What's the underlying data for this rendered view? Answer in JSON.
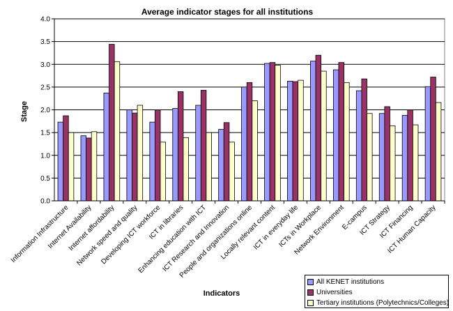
{
  "chart_data": {
    "type": "bar",
    "title": "Average indicator stages for all institutions",
    "xlabel": "Indicators",
    "ylabel": "Stage",
    "ylim": [
      0,
      4
    ],
    "yticks": [
      "0.0",
      "0.5",
      "1.0",
      "1.5",
      "2.0",
      "2.5",
      "3.0",
      "3.5",
      "4.0"
    ],
    "grid": true,
    "legend_position": "bottom-right",
    "categories": [
      "Information Infrastructure",
      "Internet Availability",
      "Internet affordability",
      "Network speed and quality",
      "Developing ICT workforce",
      "ICT in libraries",
      "Enhancing education with ICT",
      "ICT Research and Innovation",
      "People and organizations online",
      "Locally relevant content",
      "ICT in everyday life",
      "ICTs in Workplace",
      "Network Environment",
      "E-campus",
      "ICT Strategy",
      "ICT Financing",
      "ICT Human Capacity"
    ],
    "series": [
      {
        "name": "All KENET institutions",
        "color": "#9999ff",
        "values": [
          1.73,
          1.43,
          2.37,
          2.0,
          1.73,
          2.03,
          2.1,
          1.57,
          2.5,
          3.02,
          2.63,
          3.07,
          2.88,
          2.42,
          1.92,
          1.88,
          2.51
        ]
      },
      {
        "name": "Universities",
        "color": "#993366",
        "values": [
          1.87,
          1.38,
          3.44,
          1.93,
          2.0,
          2.4,
          2.43,
          1.72,
          2.6,
          3.04,
          2.62,
          3.2,
          3.04,
          2.68,
          2.07,
          2.0,
          2.72
        ]
      },
      {
        "name": "Tertiary institutions (Polytechnics/Colleges)",
        "color": "#ffffcc",
        "values": [
          1.5,
          1.52,
          3.06,
          2.1,
          1.29,
          1.39,
          1.5,
          1.29,
          2.2,
          2.98,
          2.65,
          2.85,
          2.6,
          1.92,
          1.65,
          1.67,
          2.16
        ]
      }
    ]
  }
}
